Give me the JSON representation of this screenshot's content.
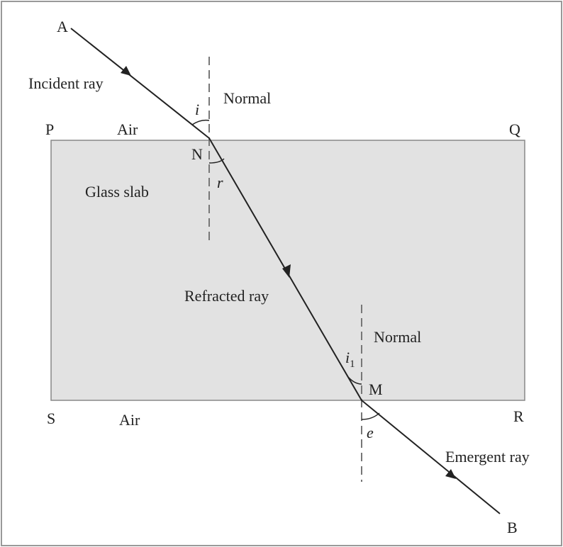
{
  "points": {
    "A": "A",
    "P": "P",
    "Q": "Q",
    "N": "N",
    "M": "M",
    "S": "S",
    "R": "R",
    "B": "B"
  },
  "rays": {
    "incident": "Incident ray",
    "refracted": "Refracted ray",
    "emergent": "Emergent ray"
  },
  "normals": [
    "Normal",
    "Normal"
  ],
  "media": {
    "air_top": "Air",
    "glass": "Glass slab",
    "air_bottom": "Air"
  },
  "angles": {
    "i": "i",
    "r": "r",
    "i1": {
      "base": "i",
      "sub": "1"
    },
    "e": "e"
  }
}
